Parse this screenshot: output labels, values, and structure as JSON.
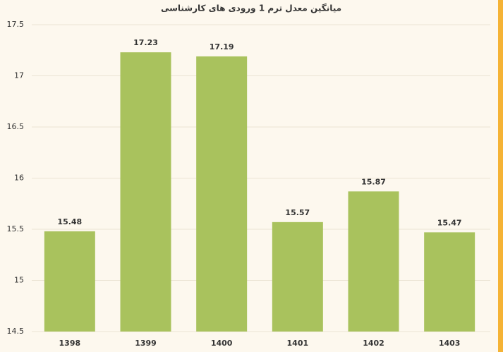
{
  "chart_data": {
    "type": "bar",
    "title": "میانگین معدل ترم 1 ورودی های کارشناسی",
    "categories": [
      "1398",
      "1399",
      "1400",
      "1401",
      "1402",
      "1403"
    ],
    "values": [
      15.48,
      17.23,
      17.19,
      15.57,
      15.87,
      15.47
    ],
    "color": "#a9c25d",
    "ylim": [
      14.5,
      17.5
    ],
    "yticks": [
      14.5,
      15,
      15.5,
      16,
      16.5,
      17,
      17.5
    ],
    "grid": true
  }
}
